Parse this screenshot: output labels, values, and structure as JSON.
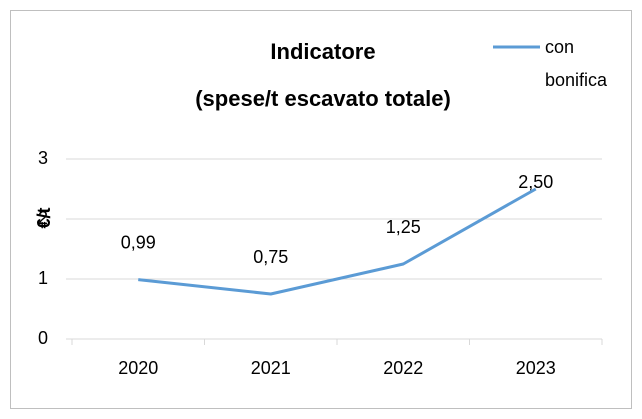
{
  "chart_data": {
    "type": "line",
    "title": [
      "Indicatore",
      "(spese/t escavato totale)"
    ],
    "y_label": "€/t",
    "categories": [
      "2020",
      "2021",
      "2022",
      "2023"
    ],
    "series": [
      {
        "name": "con bonifica",
        "color": "#5b9bd5",
        "values": [
          0.99,
          0.75,
          1.25,
          2.5
        ],
        "value_labels": [
          "0,99",
          "0,75",
          "1,25",
          "2,50"
        ]
      }
    ],
    "ylim": [
      0,
      3
    ],
    "yticks": [
      0,
      1,
      2,
      3
    ],
    "grid": true,
    "legend": "top-right"
  }
}
